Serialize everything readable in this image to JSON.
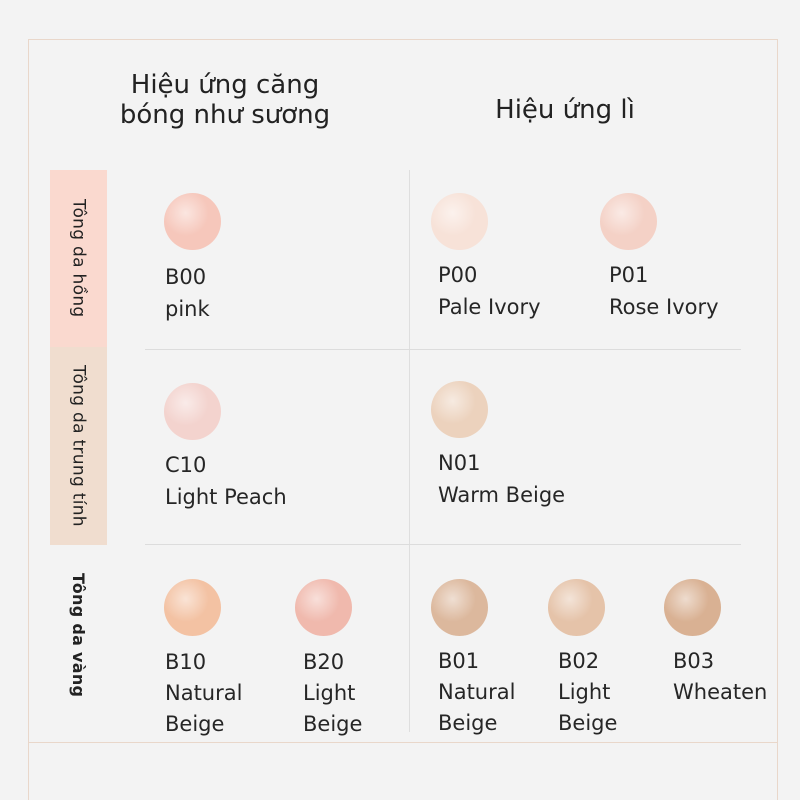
{
  "headers": {
    "glow": "Hiệu ứng căng bóng như sương",
    "matte": "Hiệu ứng lì"
  },
  "rows": {
    "pink": "Tông da hồng",
    "neutral": "Tông da trung tính",
    "yellow": "Tông da vàng"
  },
  "shades": {
    "b00": {
      "code": "B00",
      "name": "pink",
      "color": "#f6c7bb"
    },
    "p00": {
      "code": "P00",
      "name": "Pale Ivory",
      "color": "#f7e2d8"
    },
    "p01": {
      "code": "P01",
      "name": "Rose Ivory",
      "color": "#f4d1c6"
    },
    "c10": {
      "code": "C10",
      "name": "Light Peach",
      "color": "#f3d3ce"
    },
    "n01": {
      "code": "N01",
      "name": "Warm Beige",
      "color": "#ecd2bd"
    },
    "b10": {
      "code": "B10",
      "name": "Natural\nBeige",
      "color": "#f3c2a3"
    },
    "b20": {
      "code": "B20",
      "name": "Light\nBeige",
      "color": "#f0b9ad"
    },
    "b01": {
      "code": "B01",
      "name": "Natural\nBeige",
      "color": "#dcb89d"
    },
    "b02": {
      "code": "B02",
      "name": "Light\nBeige",
      "color": "#e5c3a9"
    },
    "b03": {
      "code": "B03",
      "name": "Wheaten",
      "color": "#d9b193"
    }
  }
}
